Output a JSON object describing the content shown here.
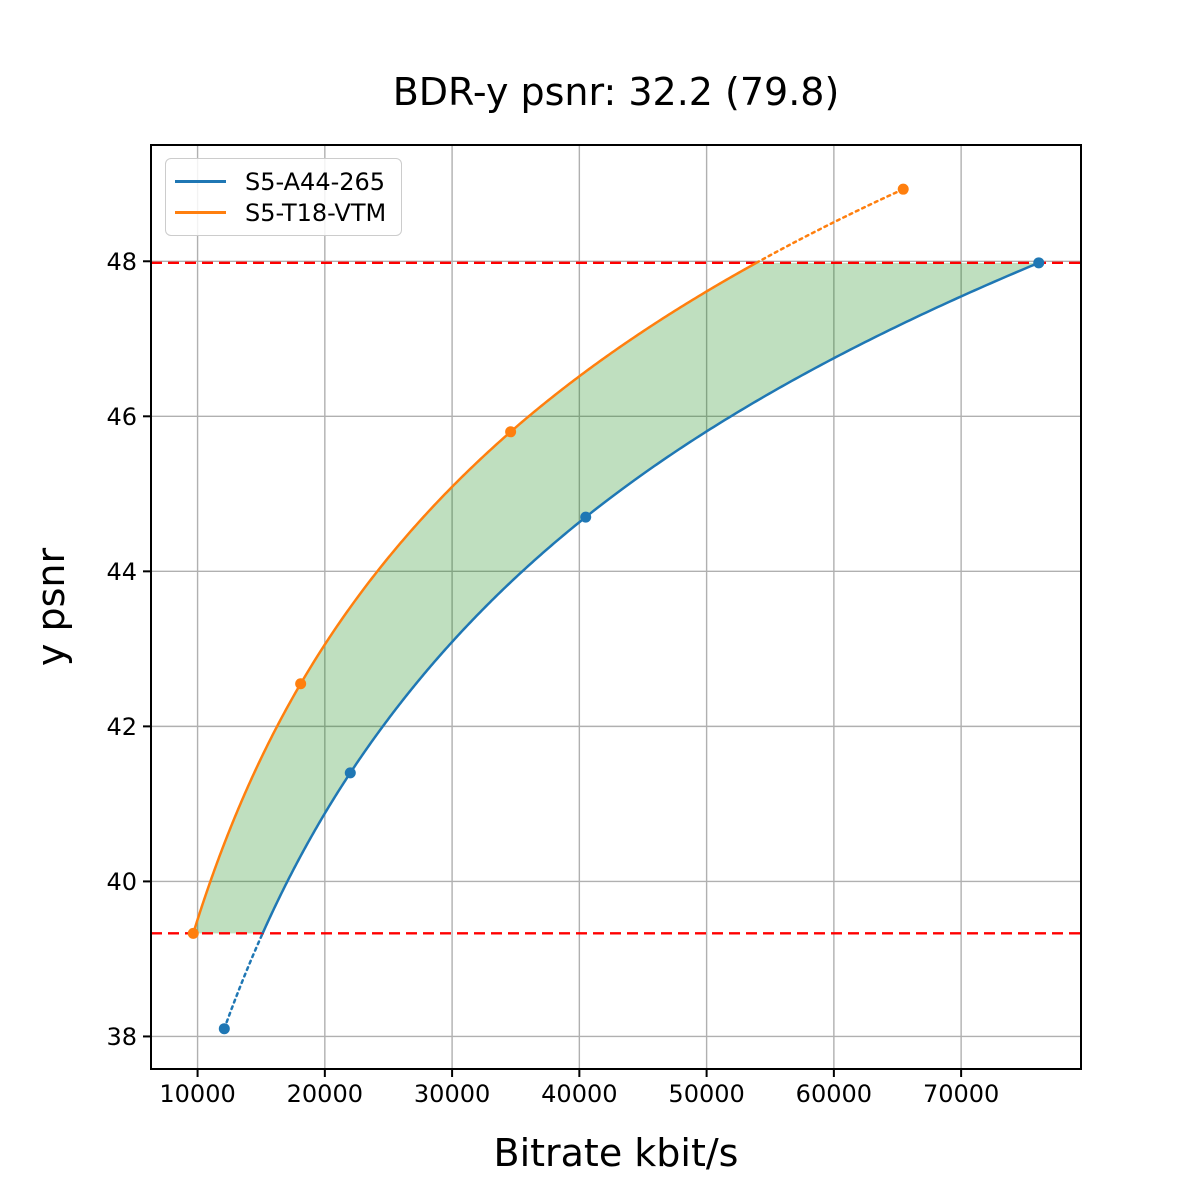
{
  "figure": {
    "title": "BDR-y psnr: 32.2 (79.8)",
    "xlabel": "Bitrate kbit/s",
    "ylabel": "y psnr"
  },
  "chart_data": {
    "type": "line",
    "title": "BDR-y psnr: 32.2 (79.8)",
    "xlabel": "Bitrate kbit/s",
    "ylabel": "y psnr",
    "xlim": [
      6340,
      79420
    ],
    "ylim": [
      37.58,
      49.5
    ],
    "x_ticks": [
      10000,
      20000,
      30000,
      40000,
      50000,
      60000,
      70000
    ],
    "y_ticks": [
      38,
      40,
      42,
      44,
      46,
      48
    ],
    "grid": true,
    "grid_color": "#b0b0b0",
    "legend_position": "upper left",
    "series": [
      {
        "name": "S5-A44-265",
        "color": "#1f77b4",
        "x": [
          12100,
          22000,
          40500,
          76100
        ],
        "y": [
          38.1,
          41.4,
          44.7,
          47.98
        ],
        "line_style": "solid inside overlap range, dotted outside"
      },
      {
        "name": "S5-T18-VTM",
        "color": "#ff7f0e",
        "x": [
          9660,
          18100,
          34600,
          65450
        ],
        "y": [
          39.33,
          42.55,
          45.8,
          48.93
        ],
        "line_style": "solid inside overlap range, dotted outside"
      }
    ],
    "hlines": {
      "values": [
        39.33,
        47.98
      ],
      "color": "#ff0000",
      "style": "dashed",
      "description": "overlap interval bounds for BD-rate integration"
    },
    "shaded_area": {
      "color": "#008000",
      "alpha": 0.25,
      "description": "area between the two rate-distortion curves within the overlap interval"
    }
  }
}
